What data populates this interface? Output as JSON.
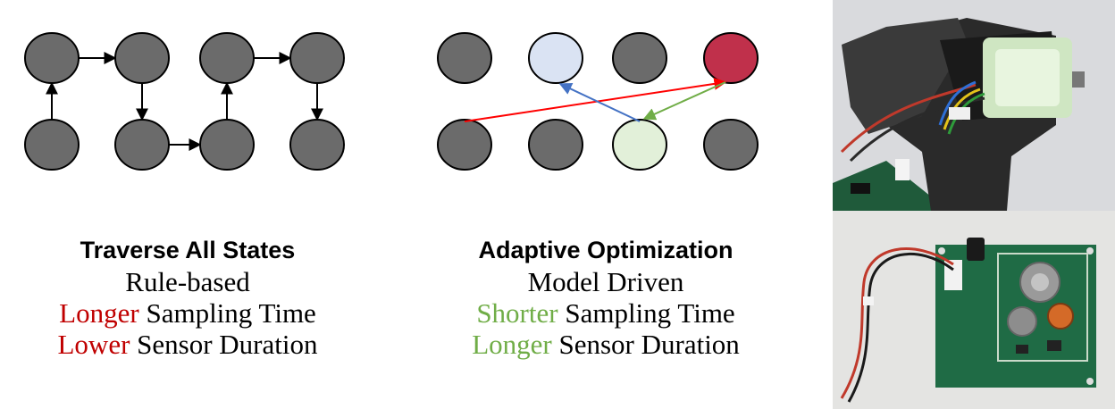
{
  "left_panel": {
    "title": "Traverse All States",
    "line1": "Rule-based",
    "line2_highlight": "Longer",
    "line2_rest": " Sampling Time",
    "line3_highlight": "Lower",
    "line3_rest": " Sensor Duration",
    "highlight_color": "#c00000"
  },
  "right_panel": {
    "title": "Adaptive Optimization",
    "line1": "Model Driven",
    "line2_highlight": "Shorter",
    "line2_rest": " Sampling Time",
    "line3_highlight": "Longer",
    "line3_rest": " Sensor Duration",
    "highlight_color": "#70ad47"
  },
  "colors": {
    "node_gray": "#6b6b6b",
    "node_blue": "#dae3f3",
    "node_red": "#c0304b",
    "node_green": "#e2f0d9",
    "arrow_red": "#ff0000",
    "arrow_blue": "#4472c4",
    "arrow_green": "#70ad47"
  }
}
